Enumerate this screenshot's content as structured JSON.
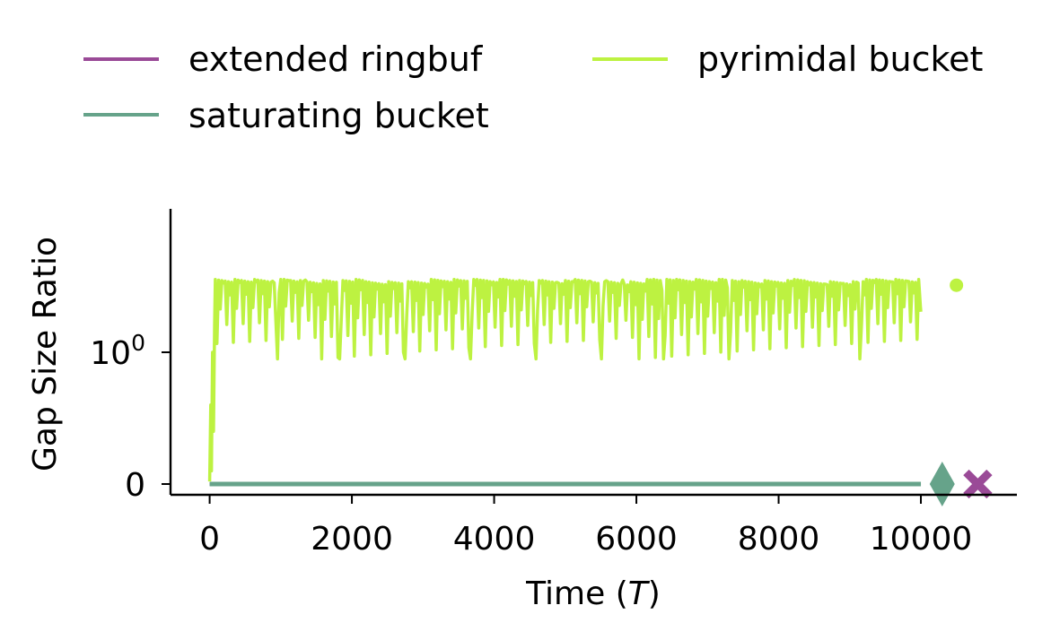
{
  "chart_data": {
    "type": "line",
    "title": "",
    "xlabel_text": "Time (",
    "xlabel_var": "T",
    "xlabel_close": ")",
    "ylabel": "Gap Size Ratio",
    "xlim": [
      -550,
      11350
    ],
    "x_ticks": [
      0,
      2000,
      4000,
      6000,
      8000,
      10000
    ],
    "x_tick_labels": [
      "0",
      "2000",
      "4000",
      "6000",
      "8000",
      "10000"
    ],
    "y_scale": "symlog",
    "y_tick_labels": [
      {
        "value": 0,
        "base": "0",
        "exp": ""
      },
      {
        "value": 1,
        "base": "10",
        "exp": "0"
      }
    ],
    "grid": false,
    "legend_position": "top",
    "series": [
      {
        "name": "extended ringbuf",
        "color": "#9a4a97",
        "line_x_range": [
          0,
          10000
        ],
        "line_value": 0,
        "end_marker": {
          "shape": "x",
          "x": 10800,
          "y": 0
        }
      },
      {
        "name": "saturating bucket",
        "color": "#66a38a",
        "line_x_range": [
          0,
          10000
        ],
        "line_value": 0,
        "end_marker": {
          "shape": "diamond",
          "x": 10300,
          "y": 0
        }
      },
      {
        "name": "pyrimidal bucket",
        "color": "#bdf241",
        "pattern": "sawtooth",
        "line_x_range": [
          0,
          10000
        ],
        "value_range": [
          0.95,
          1.95
        ],
        "end_marker": {
          "shape": "circle",
          "x": 10500,
          "y": 1.85
        }
      }
    ]
  }
}
